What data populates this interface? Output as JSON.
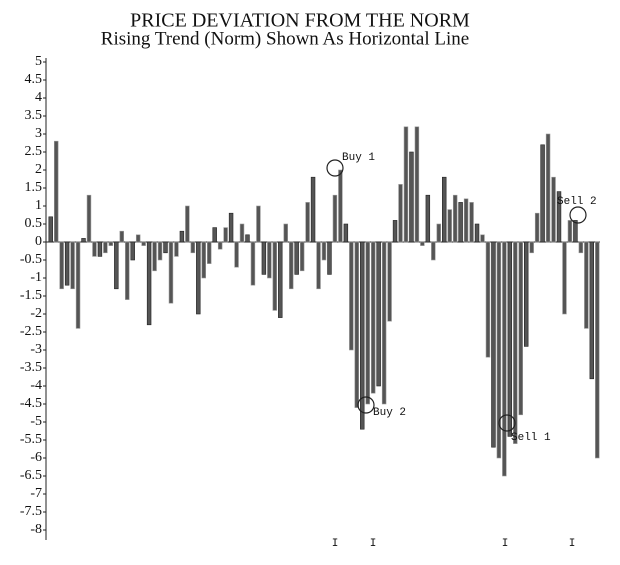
{
  "chart_data": {
    "type": "bar",
    "title": "PRICE DEVIATION FROM THE NORM",
    "subtitle": "Rising Trend (Norm) Shown As Horizontal Line",
    "color": "#555555",
    "values": [
      0.7,
      2.8,
      -1.3,
      -1.2,
      -1.3,
      -2.4,
      0.1,
      1.3,
      -0.4,
      -0.4,
      -0.3,
      -0.1,
      -1.3,
      0.3,
      -1.6,
      -0.5,
      0.2,
      -0.1,
      -2.3,
      -0.8,
      -0.5,
      -0.3,
      -1.7,
      -0.4,
      0.3,
      1,
      -0.3,
      -2,
      -1,
      -0.6,
      0.4,
      -0.2,
      0.4,
      0.8,
      -0.7,
      0.5,
      0.2,
      -1.2,
      1,
      -0.9,
      -1,
      -1.9,
      -2.1,
      0.5,
      -1.3,
      -0.9,
      -0.8,
      1.1,
      1.8,
      -1.3,
      -0.5,
      -0.9,
      1.3,
      2,
      0.5,
      -3,
      -4.6,
      -5.2,
      -4.5,
      -4.2,
      -4,
      -4.5,
      -2.2,
      0.6,
      1.6,
      3.2,
      2.5,
      3.2,
      -0.1,
      1.3,
      -0.5,
      0.5,
      1.8,
      0.9,
      1.3,
      1.1,
      1.2,
      1.1,
      0.5,
      0.2,
      -3.2,
      -5.7,
      -6,
      -6.5,
      -5.4,
      -5.6,
      -4.8,
      -2.9,
      -0.3,
      0.8,
      2.7,
      3,
      1.8,
      1.4,
      -2,
      0.6,
      0.6,
      -0.3,
      -2.4,
      -3.8,
      -6
    ],
    "ylim": [
      -8,
      5
    ],
    "yticks": [
      5,
      4.5,
      4,
      3.5,
      3,
      2.5,
      2,
      1.5,
      1,
      0.5,
      0,
      -0.5,
      -1,
      -1.5,
      -2,
      -2.5,
      -3,
      -3.5,
      -4,
      -4.5,
      -5,
      -5.5,
      -6,
      -6.5,
      -7,
      -7.5,
      -8
    ],
    "annotations": [
      "Buy 1",
      "Buy 2",
      "Sell 1",
      "Sell 2",
      "I",
      "I",
      "I",
      "I"
    ]
  }
}
